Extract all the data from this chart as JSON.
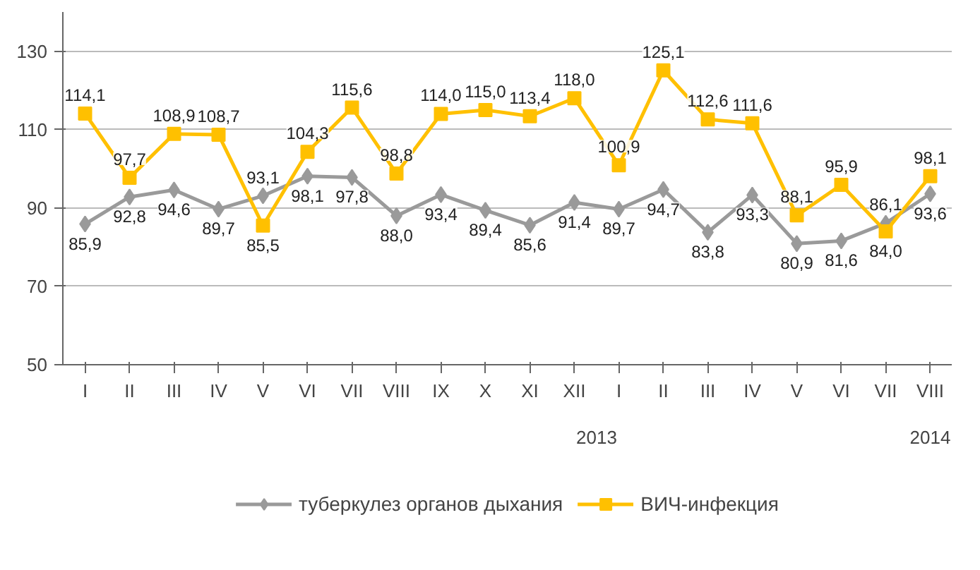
{
  "chart_data": {
    "type": "line",
    "categories": [
      "I",
      "II",
      "III",
      "IV",
      "V",
      "VI",
      "VII",
      "VIII",
      "IX",
      "X",
      "XI",
      "XII",
      "I",
      "II",
      "III",
      "IV",
      "V",
      "VI",
      "VII",
      "VIII"
    ],
    "series": [
      {
        "name": "туберкулез органов дыхания",
        "color": "#9a9a9a",
        "marker": "diamond",
        "values": [
          85.9,
          92.8,
          94.6,
          89.7,
          93.1,
          98.1,
          97.8,
          88.0,
          93.4,
          89.4,
          85.6,
          91.4,
          89.7,
          94.7,
          83.8,
          93.3,
          80.9,
          81.6,
          86.1,
          93.6
        ],
        "value_labels": [
          "85,9",
          "92,8",
          "94,6",
          "89,7",
          "93,1",
          "98,1",
          "97,8",
          "88,0",
          "93,4",
          "89,4",
          "85,6",
          "91,4",
          "89,7",
          "94,7",
          "83,8",
          "93,3",
          "80,9",
          "81,6",
          "86,1",
          "93,6"
        ]
      },
      {
        "name": "ВИЧ-инфекция",
        "color": "#ffc000",
        "marker": "square",
        "values": [
          114.1,
          97.7,
          108.9,
          108.7,
          85.5,
          104.3,
          115.6,
          98.8,
          114.0,
          115.0,
          113.4,
          118.0,
          100.9,
          125.1,
          112.6,
          111.6,
          88.1,
          95.9,
          84.0,
          98.1
        ],
        "value_labels": [
          "114,1",
          "97,7",
          "108,9",
          "108,7",
          "85,5",
          "104,3",
          "115,6",
          "98,8",
          "114,0",
          "115,0",
          "113,4",
          "118,0",
          "100,9",
          "125,1",
          "112,6",
          "111,6",
          "88,1",
          "95,9",
          "84,0",
          "98,1"
        ]
      }
    ],
    "ylim": [
      50,
      140
    ],
    "yticks": [
      50,
      70,
      90,
      110,
      130
    ],
    "grid": "y",
    "legend": "bottom",
    "line_style": "solid",
    "annotations": [
      "2013",
      "2014"
    ]
  }
}
